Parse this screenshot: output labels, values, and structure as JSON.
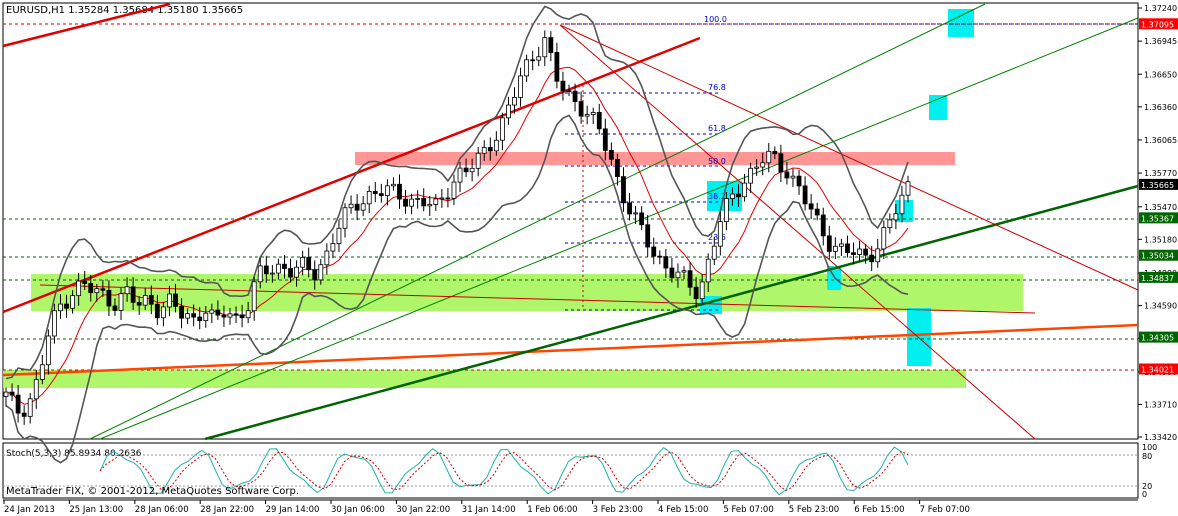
{
  "chart_title": "EURUSD,H1  1.35284 1.35684 1.35180 1.35665",
  "stoch_label": "Stoch(5,3,3) 85.8934 80.2636",
  "copyright": "MetaTrader FIX, © 2001-2012, MetaQuotes Software Corp.",
  "price_scale": [
    "1.37240",
    "1.36945",
    "1.36650",
    "1.36360",
    "1.36065",
    "1.35770",
    "1.35470",
    "1.35180",
    "1.34880",
    "1.34590",
    "1.34300",
    "1.34000",
    "1.33710",
    "1.33420"
  ],
  "level_labels": [
    {
      "text": "1.37095",
      "color": "#ff0000",
      "value": 1.37095
    },
    {
      "text": "1.35665",
      "color": "#000000",
      "value": 1.35665
    },
    {
      "text": "1.35367",
      "color": "#006400",
      "value": 1.35367
    },
    {
      "text": "1.35034",
      "color": "#006400",
      "value": 1.35034
    },
    {
      "text": "1.34837",
      "color": "#006400",
      "value": 1.34837
    },
    {
      "text": "1.34305",
      "color": "#006400",
      "value": 1.34305
    },
    {
      "text": "1.34021",
      "color": "#ff0000",
      "value": 1.34021
    }
  ],
  "fib_labels": [
    "100.0",
    "76.8",
    "61.8",
    "50.0",
    "38.2",
    "23.6"
  ],
  "stoch_scale": [
    "100",
    "80",
    "20",
    "0"
  ],
  "time_labels": [
    "24 Jan 2013",
    "25 Jan 13:00",
    "28 Jan 06:00",
    "28 Jan 22:00",
    "29 Jan 14:00",
    "30 Jan 06:00",
    "30 Jan 22:00",
    "31 Jan 14:00",
    "1 Feb 06:00",
    "3 Feb 23:00",
    "4 Feb 15:00",
    "5 Feb 07:00",
    "5 Feb 23:00",
    "6 Feb 15:00",
    "7 Feb 07:00"
  ],
  "chart_data": {
    "type": "candlestick",
    "symbol": "EURUSD",
    "timeframe": "H1",
    "last": {
      "open": 1.35284,
      "high": 1.35684,
      "low": 1.3518,
      "close": 1.35665
    },
    "ylim": [
      1.3342,
      1.3724
    ],
    "stochastic": {
      "k": 85.8934,
      "d": 80.2636,
      "params": "5,3,3"
    },
    "close_path": [
      1.3378,
      1.3365,
      1.3372,
      1.3395,
      1.3438,
      1.346,
      1.3472,
      1.3478,
      1.347,
      1.3468,
      1.3462,
      1.347,
      1.3458,
      1.3466,
      1.3455,
      1.3462,
      1.345,
      1.3448,
      1.3458,
      1.3442,
      1.3455,
      1.3448,
      1.346,
      1.3485,
      1.3492,
      1.3495,
      1.349,
      1.3492,
      1.3488,
      1.3502,
      1.3525,
      1.354,
      1.3552,
      1.3558,
      1.356,
      1.356,
      1.3558,
      1.3552,
      1.355,
      1.3545,
      1.3562,
      1.3575,
      1.3578,
      1.359,
      1.3605,
      1.3618,
      1.364,
      1.3668,
      1.3685,
      1.3695,
      1.366,
      1.3648,
      1.364,
      1.3628,
      1.3612,
      1.359,
      1.356,
      1.3538,
      1.352,
      1.3505,
      1.3495,
      1.3485,
      1.3478,
      1.347,
      1.3505,
      1.3535,
      1.3555,
      1.357,
      1.3582,
      1.359,
      1.3588,
      1.358,
      1.3565,
      1.3545,
      1.3528,
      1.3515,
      1.3508,
      1.3505,
      1.3502,
      1.351,
      1.3525,
      1.3545,
      1.3566
    ]
  }
}
